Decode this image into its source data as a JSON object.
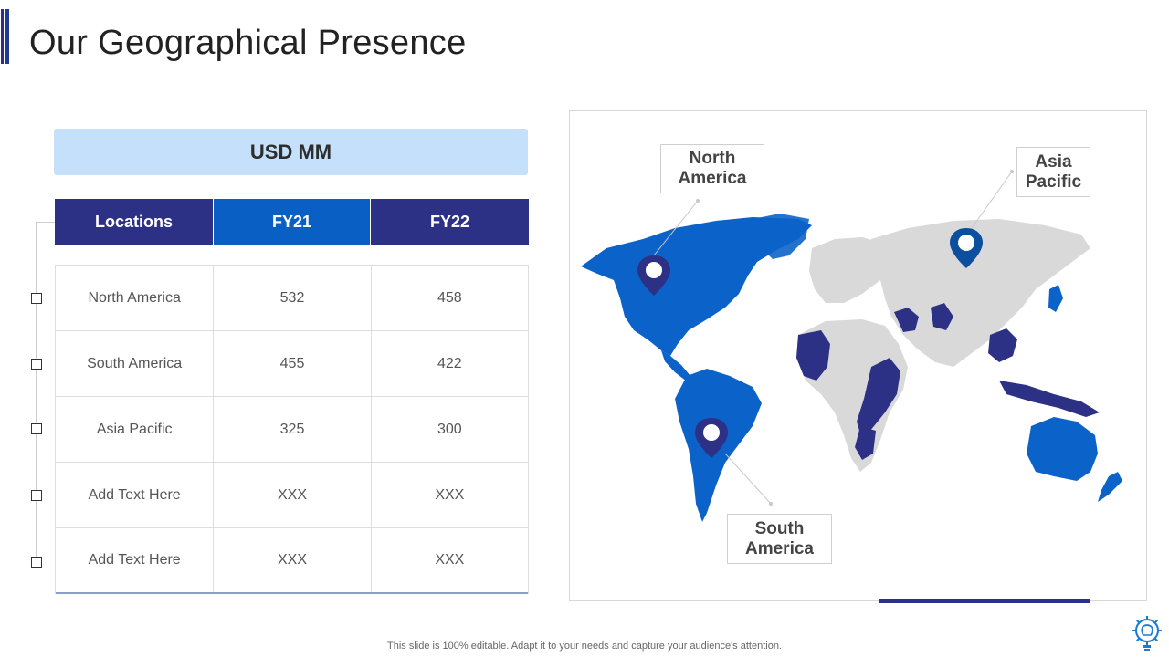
{
  "title": "Our Geographical Presence",
  "currency_header": "USD MM",
  "table": {
    "columns": [
      "Locations",
      "FY21",
      "FY22"
    ],
    "rows": [
      [
        "North America",
        "532",
        "458"
      ],
      [
        "South America",
        "455",
        "422"
      ],
      [
        "Asia Pacific",
        "325",
        "300"
      ],
      [
        "Add Text Here",
        "XXX",
        "XXX"
      ],
      [
        "Add Text Here",
        "XXX",
        "XXX"
      ]
    ]
  },
  "map": {
    "callouts": {
      "north_america": [
        "North",
        "America"
      ],
      "south_america": [
        "South",
        "America"
      ],
      "asia_pacific": [
        "Asia",
        "Pacific"
      ]
    },
    "colors": {
      "highlight_primary": "#0b63c9",
      "highlight_dark": "#2d3185",
      "land": "#d9d9d9"
    }
  },
  "footer": "This slide is 100% editable. Adapt it to your needs and capture your audience's attention.",
  "icons": [
    "map-pin-icon",
    "lightbulb-gear-icon",
    "checkbox-icon"
  ]
}
